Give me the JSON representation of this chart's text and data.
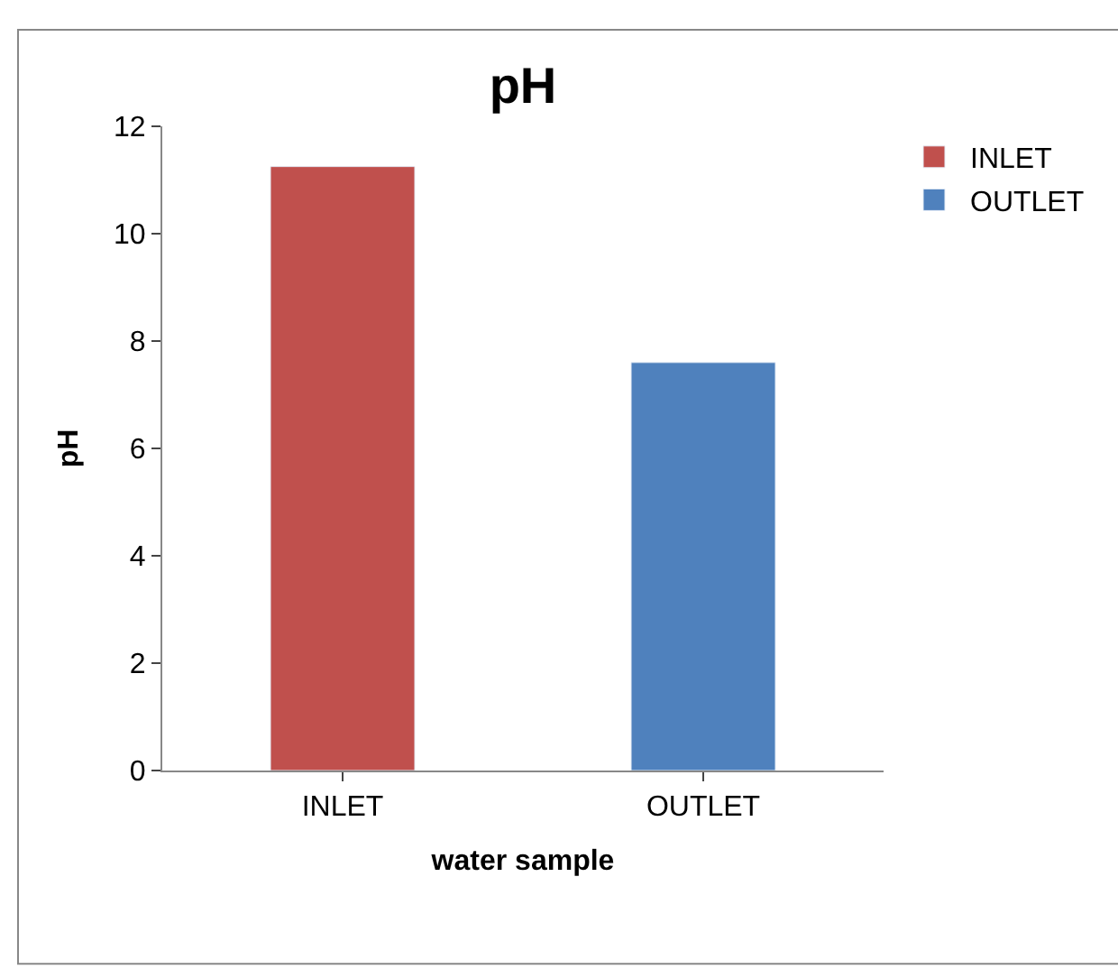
{
  "chart_data": {
    "type": "bar",
    "title": "pH",
    "xlabel": "water sample",
    "ylabel": "pH",
    "categories": [
      "INLET",
      "OUTLET"
    ],
    "series": [
      {
        "name": "INLET",
        "color": "#c0504d",
        "values": [
          11.25,
          null
        ]
      },
      {
        "name": "OUTLET",
        "color": "#4f81bd",
        "values": [
          null,
          7.6
        ]
      }
    ],
    "stacked": true,
    "ylim": [
      0,
      12
    ],
    "yticks": [
      0,
      2,
      4,
      6,
      8,
      10,
      12
    ],
    "grid": false,
    "legend": "top right"
  }
}
